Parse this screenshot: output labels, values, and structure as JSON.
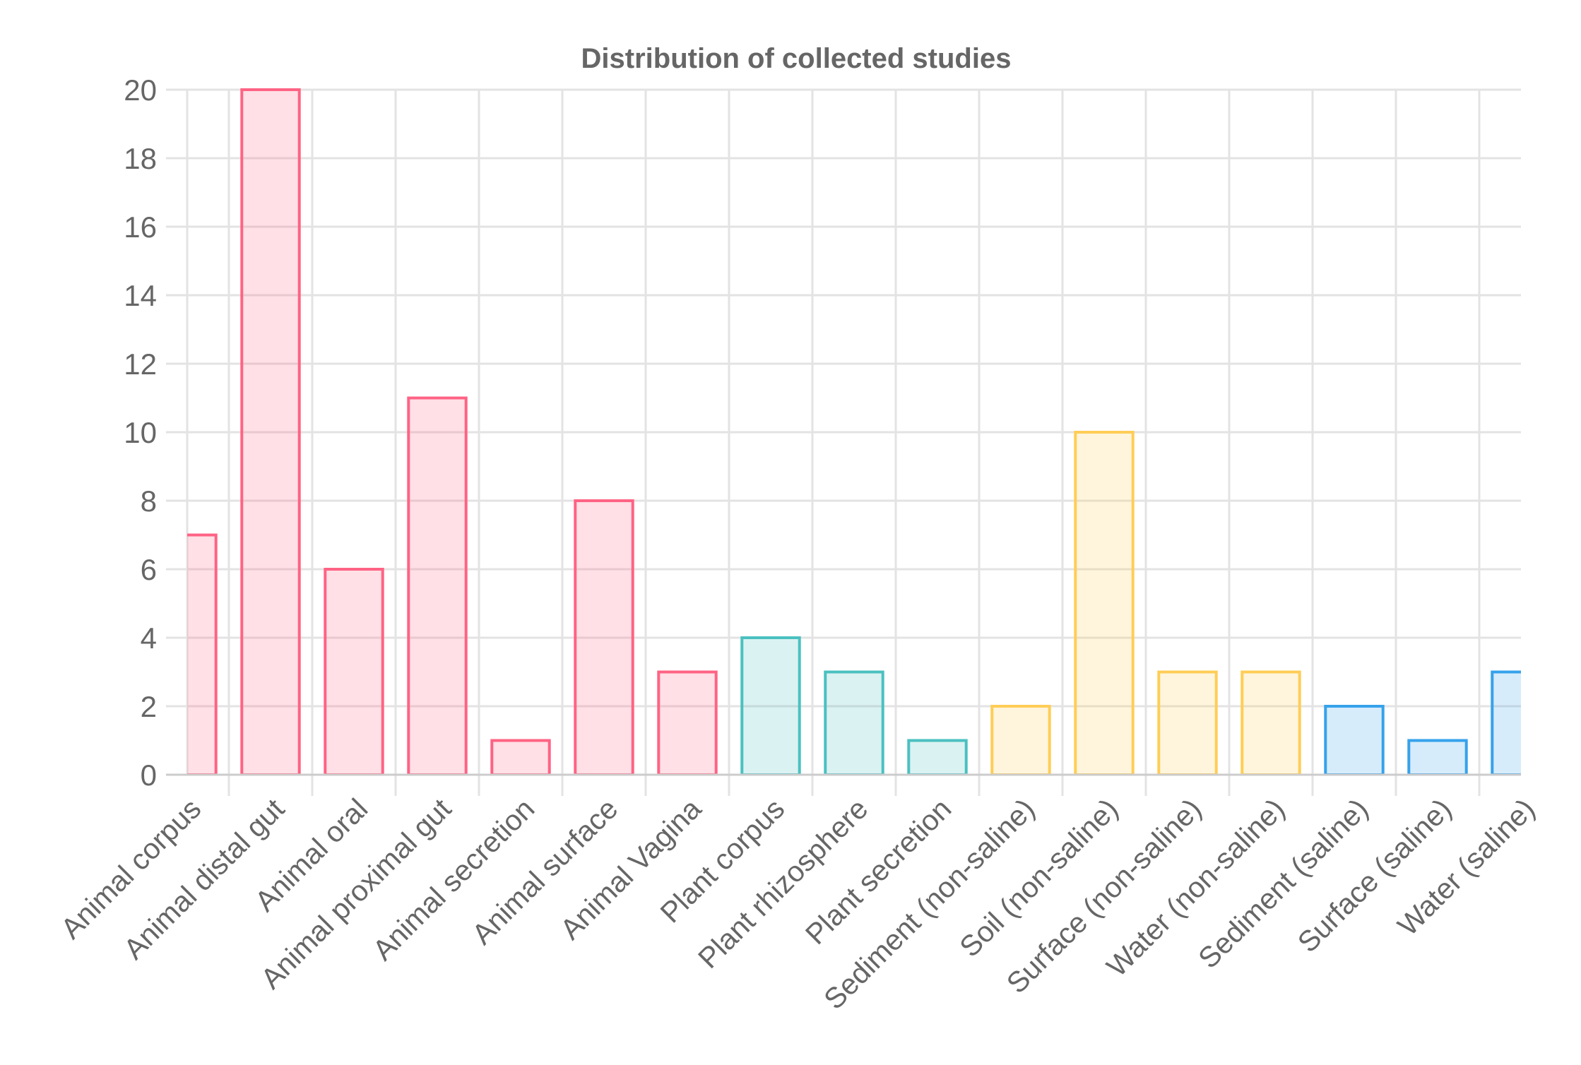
{
  "chart_data": {
    "type": "bar",
    "title": "Distribution of collected studies",
    "xlabel": "",
    "ylabel": "",
    "ylim": [
      0,
      20
    ],
    "y_ticks": [
      0,
      2,
      4,
      6,
      8,
      10,
      12,
      14,
      16,
      18,
      20
    ],
    "grid": true,
    "legend": "none",
    "categories": [
      "Animal corpus",
      "Animal distal gut",
      "Animal oral",
      "Animal proximal gut",
      "Animal secretion",
      "Animal surface",
      "Animal Vagina",
      "Plant corpus",
      "Plant rhizosphere",
      "Plant secretion",
      "Sediment (non-saline)",
      "Soil (non-saline)",
      "Surface (non-saline)",
      "Water (non-saline)",
      "Sediment (saline)",
      "Surface (saline)",
      "Water (saline)"
    ],
    "values": [
      7,
      20,
      6,
      11,
      1,
      8,
      3,
      4,
      3,
      1,
      2,
      10,
      3,
      3,
      2,
      1,
      3
    ],
    "groups": [
      "animal",
      "animal",
      "animal",
      "animal",
      "animal",
      "animal",
      "animal",
      "plant",
      "plant",
      "plant",
      "non-saline",
      "non-saline",
      "non-saline",
      "non-saline",
      "saline",
      "saline",
      "saline"
    ],
    "group_colors": {
      "animal": {
        "border": "#ff6384",
        "fill": "#ff6384"
      },
      "plant": {
        "border": "#4bc0c0",
        "fill": "#4bc0c0"
      },
      "non-saline": {
        "border": "#ffcd56",
        "fill": "#ffcd56"
      },
      "saline": {
        "border": "#36a2eb",
        "fill": "#36a2eb"
      }
    },
    "fill_opacity": 0.2
  }
}
